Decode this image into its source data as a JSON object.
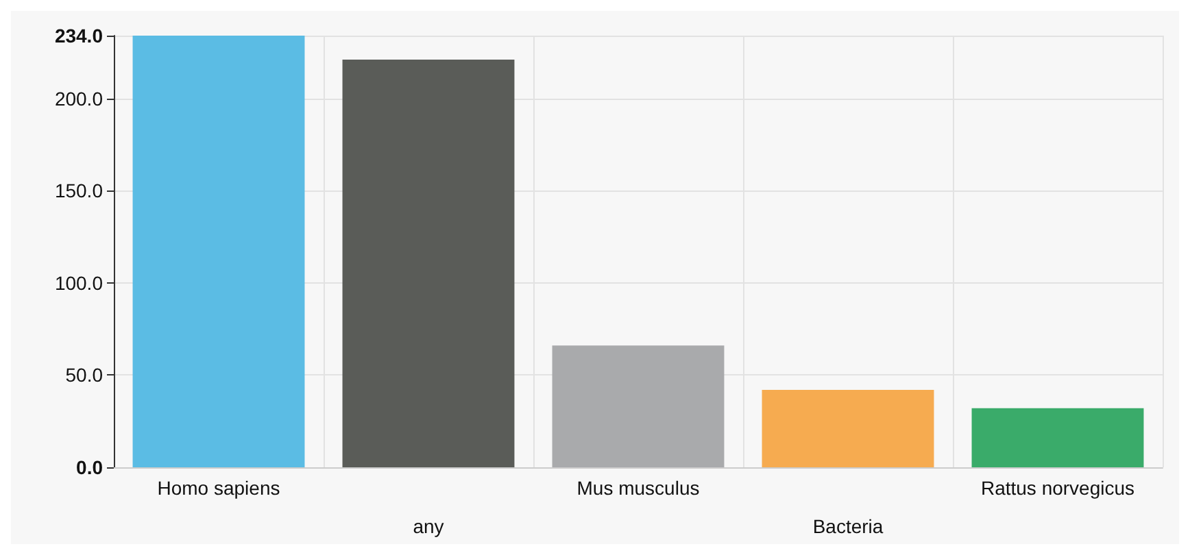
{
  "chart_data": {
    "type": "bar",
    "categories": [
      "Homo sapiens",
      "any",
      "Mus musculus",
      "Bacteria",
      "Rattus norvegicus"
    ],
    "values": [
      234,
      221,
      66,
      42,
      32
    ],
    "colors": [
      "#5bbce4",
      "#5a5c58",
      "#a9aaac",
      "#f6ab50",
      "#3aab6a"
    ],
    "ylim": [
      0,
      234
    ],
    "yticks": [
      {
        "value": 0,
        "label": "0.0"
      },
      {
        "value": 50,
        "label": "50.0"
      },
      {
        "value": 100,
        "label": "100.0"
      },
      {
        "value": 150,
        "label": "150.0"
      },
      {
        "value": 200,
        "label": "200.0"
      },
      {
        "value": 234,
        "label": "234.0"
      }
    ],
    "grid": true
  }
}
